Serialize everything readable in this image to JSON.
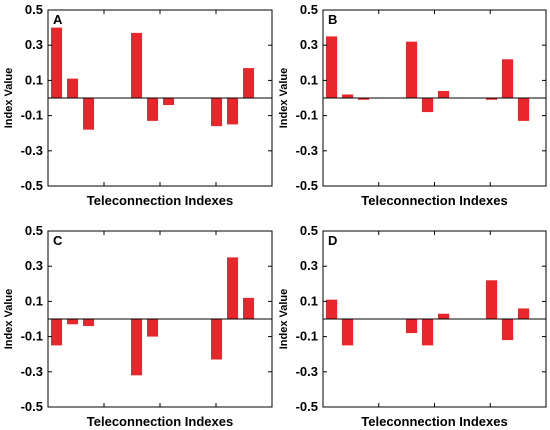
{
  "chart_data": [
    {
      "type": "bar",
      "panel": "A",
      "xlabel": "Teleconnection Indexes",
      "ylabel": "Index Value",
      "ylim": [
        -0.5,
        0.5
      ],
      "yticks": [
        "0.5",
        "0.3",
        "0.1",
        "-0.1",
        "-0.3",
        "-0.5"
      ],
      "bar_color": "#e8262c",
      "values": [
        0.4,
        0.11,
        -0.18,
        null,
        null,
        0.37,
        -0.13,
        -0.04,
        null,
        null,
        -0.16,
        -0.15,
        0.17
      ]
    },
    {
      "type": "bar",
      "panel": "B",
      "xlabel": "Teleconnection Indexes",
      "ylabel": "Index Value",
      "ylim": [
        -0.5,
        0.5
      ],
      "yticks": [
        "0.5",
        "0.3",
        "0.1",
        "-0.1",
        "-0.3",
        "-0.5"
      ],
      "bar_color": "#e8262c",
      "values": [
        0.35,
        0.02,
        -0.01,
        null,
        null,
        0.32,
        -0.08,
        0.04,
        null,
        null,
        -0.01,
        0.22,
        -0.13
      ]
    },
    {
      "type": "bar",
      "panel": "C",
      "xlabel": "Teleconnection Indexes",
      "ylabel": "Index Value",
      "ylim": [
        -0.5,
        0.5
      ],
      "yticks": [
        "0.5",
        "0.3",
        "0.1",
        "-0.1",
        "-0.3",
        "-0.5"
      ],
      "bar_color": "#e8262c",
      "values": [
        -0.15,
        -0.03,
        -0.04,
        null,
        null,
        -0.32,
        -0.1,
        null,
        null,
        null,
        -0.23,
        0.35,
        0.12
      ]
    },
    {
      "type": "bar",
      "panel": "D",
      "xlabel": "Teleconnection Indexes",
      "ylabel": "Index Value",
      "ylim": [
        -0.5,
        0.5
      ],
      "yticks": [
        "0.5",
        "0.3",
        "0.1",
        "-0.1",
        "-0.3",
        "-0.5"
      ],
      "bar_color": "#e8262c",
      "values": [
        0.11,
        -0.15,
        null,
        null,
        null,
        -0.08,
        -0.15,
        0.03,
        null,
        null,
        0.22,
        -0.12,
        0.06
      ]
    }
  ]
}
